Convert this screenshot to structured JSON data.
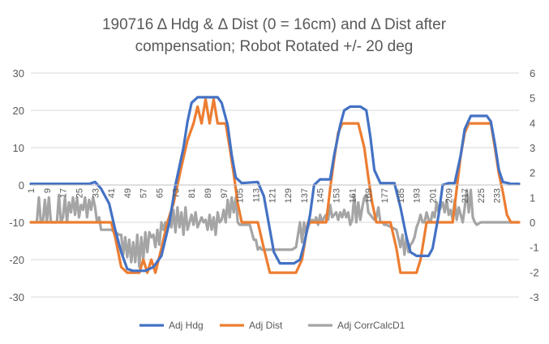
{
  "chart_data": {
    "type": "line",
    "title_line1": "190716 Δ Hdg & Δ Dist (0 = 16cm) and Δ Dist after",
    "title_line2": "compensation; Robot Rotated +/- 20 deg",
    "x_min": 1,
    "x_max": 244,
    "x_ticks": [
      "1",
      "9",
      "17",
      "25",
      "33",
      "41",
      "49",
      "57",
      "65",
      "73",
      "81",
      "89",
      "97",
      "105",
      "113",
      "121",
      "129",
      "137",
      "145",
      "153",
      "161",
      "169",
      "177",
      "185",
      "193",
      "201",
      "209",
      "217",
      "225",
      "233"
    ],
    "y_left": {
      "min": -30,
      "max": 30,
      "ticks": [
        "-30",
        "-20",
        "-10",
        "0",
        "10",
        "20",
        "30"
      ]
    },
    "y_right": {
      "min": -3,
      "max": 6,
      "ticks": [
        "-3",
        "-2",
        "-1",
        "0",
        "1",
        "2",
        "3",
        "4",
        "5",
        "6"
      ]
    },
    "grid": "horizontal",
    "legend_position": "bottom",
    "series": [
      {
        "name": "Adj Hdg",
        "color": "#4472C4",
        "axis": "left",
        "points": [
          [
            1,
            0.3
          ],
          [
            30,
            0.3
          ],
          [
            33,
            0.8
          ],
          [
            36,
            -1
          ],
          [
            40,
            -5
          ],
          [
            43,
            -12
          ],
          [
            46,
            -18
          ],
          [
            49,
            -22.5
          ],
          [
            52,
            -23
          ],
          [
            58,
            -23
          ],
          [
            62,
            -22
          ],
          [
            66,
            -19
          ],
          [
            70,
            -10
          ],
          [
            73,
            0
          ],
          [
            77,
            10
          ],
          [
            79,
            17
          ],
          [
            81,
            22
          ],
          [
            84,
            23.5
          ],
          [
            94,
            23.5
          ],
          [
            96,
            22
          ],
          [
            99,
            16
          ],
          [
            101,
            8
          ],
          [
            103,
            2
          ],
          [
            106,
            0.5
          ],
          [
            114,
            0.8
          ],
          [
            117,
            -3
          ],
          [
            120,
            -12
          ],
          [
            122,
            -18
          ],
          [
            125,
            -21
          ],
          [
            132,
            -21
          ],
          [
            135,
            -20
          ],
          [
            137,
            -16
          ],
          [
            140,
            -8
          ],
          [
            142,
            0
          ],
          [
            145,
            1.5
          ],
          [
            150,
            1.5
          ],
          [
            152,
            8
          ],
          [
            155,
            16
          ],
          [
            157,
            20
          ],
          [
            160,
            21
          ],
          [
            165,
            21
          ],
          [
            168,
            20
          ],
          [
            170,
            13
          ],
          [
            172,
            4
          ],
          [
            175,
            0.5
          ],
          [
            182,
            0.5
          ],
          [
            185,
            -6
          ],
          [
            188,
            -14
          ],
          [
            190,
            -18
          ],
          [
            193,
            -19
          ],
          [
            199,
            -19
          ],
          [
            201,
            -17
          ],
          [
            204,
            -8
          ],
          [
            206,
            0
          ],
          [
            209,
            0.5
          ],
          [
            212,
            0.5
          ],
          [
            215,
            8
          ],
          [
            217,
            15
          ],
          [
            220,
            18.5
          ],
          [
            228,
            18.5
          ],
          [
            230,
            17
          ],
          [
            232,
            11
          ],
          [
            234,
            4
          ],
          [
            236,
            0.8
          ],
          [
            240,
            0.3
          ],
          [
            244,
            0.3
          ]
        ]
      },
      {
        "name": "Adj Dist",
        "color": "#ED7D31",
        "axis": "left",
        "points": [
          [
            1,
            -10
          ],
          [
            38,
            -10
          ],
          [
            41,
            -10
          ],
          [
            43,
            -14
          ],
          [
            46,
            -22
          ],
          [
            49,
            -23.5
          ],
          [
            55,
            -23.5
          ],
          [
            57,
            -20
          ],
          [
            59,
            -23.5
          ],
          [
            61,
            -20
          ],
          [
            63,
            -23.5
          ],
          [
            66,
            -17
          ],
          [
            69,
            -10
          ],
          [
            72,
            -5
          ],
          [
            76,
            5
          ],
          [
            79,
            12
          ],
          [
            82,
            16.5
          ],
          [
            84,
            21
          ],
          [
            86,
            16.5
          ],
          [
            88,
            23
          ],
          [
            90,
            16.5
          ],
          [
            92,
            23
          ],
          [
            94,
            16.5
          ],
          [
            98,
            16.5
          ],
          [
            100,
            10
          ],
          [
            102,
            3
          ],
          [
            104,
            -5
          ],
          [
            106,
            -10
          ],
          [
            114,
            -10
          ],
          [
            117,
            -17
          ],
          [
            120,
            -23.5
          ],
          [
            128,
            -23.5
          ],
          [
            133,
            -23.5
          ],
          [
            136,
            -20
          ],
          [
            139,
            -10
          ],
          [
            148,
            -10
          ],
          [
            150,
            -1
          ],
          [
            152,
            7
          ],
          [
            154,
            14
          ],
          [
            156,
            16.5
          ],
          [
            164,
            16.5
          ],
          [
            167,
            10
          ],
          [
            169,
            2
          ],
          [
            171,
            -5
          ],
          [
            173,
            -10
          ],
          [
            180,
            -10
          ],
          [
            183,
            -17
          ],
          [
            185,
            -23.5
          ],
          [
            193,
            -23.5
          ],
          [
            195,
            -20
          ],
          [
            198,
            -10
          ],
          [
            211,
            -10
          ],
          [
            213,
            -1
          ],
          [
            215,
            8
          ],
          [
            217,
            14
          ],
          [
            219,
            16.5
          ],
          [
            230,
            16.5
          ],
          [
            232,
            10
          ],
          [
            234,
            3
          ],
          [
            236,
            -2
          ],
          [
            238,
            -8
          ],
          [
            240,
            -10
          ],
          [
            244,
            -10
          ]
        ]
      },
      {
        "name": "Adj CorrCalcD1",
        "color": "#A5A5A5",
        "axis": "right",
        "points": [
          [
            1,
            0
          ],
          [
            4,
            0
          ],
          [
            5,
            1
          ],
          [
            6,
            0
          ],
          [
            7,
            0
          ],
          [
            8,
            0.9
          ],
          [
            9,
            0
          ],
          [
            10,
            1
          ],
          [
            11,
            0
          ],
          [
            14,
            0
          ],
          [
            15,
            1.1
          ],
          [
            16,
            0
          ],
          [
            17,
            0.2
          ],
          [
            18,
            1
          ],
          [
            19,
            0
          ],
          [
            20,
            0.8
          ],
          [
            21,
            0.4
          ],
          [
            22,
            1
          ],
          [
            23,
            0.3
          ],
          [
            24,
            1
          ],
          [
            25,
            0.2
          ],
          [
            26,
            0.7
          ],
          [
            27,
            0.5
          ],
          [
            28,
            1
          ],
          [
            29,
            0.2
          ],
          [
            30,
            0.9
          ],
          [
            31,
            0.5
          ],
          [
            32,
            1
          ],
          [
            33,
            0.6
          ],
          [
            34,
            0
          ],
          [
            35,
            0.2
          ],
          [
            36,
            -0.3
          ],
          [
            41,
            -0.3
          ],
          [
            45,
            -0.5
          ],
          [
            46,
            -0.5
          ],
          [
            47,
            -1.3
          ],
          [
            48,
            -0.6
          ],
          [
            49,
            -1.4
          ],
          [
            50,
            -0.7
          ],
          [
            51,
            -1.6
          ],
          [
            52,
            -0.8
          ],
          [
            53,
            -1.6
          ],
          [
            54,
            -0.5
          ],
          [
            55,
            -1.8
          ],
          [
            56,
            -0.6
          ],
          [
            57,
            -1.5
          ],
          [
            58,
            -0.4
          ],
          [
            59,
            -1.2
          ],
          [
            60,
            -0.4
          ],
          [
            61,
            -0.6
          ],
          [
            62,
            -0.5
          ],
          [
            63,
            -1
          ],
          [
            64,
            -0.3
          ],
          [
            65,
            -0.9
          ],
          [
            66,
            0
          ],
          [
            67,
            -0.3
          ],
          [
            68,
            0
          ],
          [
            69,
            -0.1
          ],
          [
            70,
            0
          ],
          [
            71,
            -0.2
          ],
          [
            72,
            0.5
          ],
          [
            73,
            -0.4
          ],
          [
            74,
            0.6
          ],
          [
            75,
            -0.2
          ],
          [
            76,
            0.4
          ],
          [
            77,
            -0.5
          ],
          [
            78,
            0.6
          ],
          [
            79,
            -0.3
          ],
          [
            80,
            0
          ],
          [
            81,
            0.3
          ],
          [
            82,
            -0.1
          ],
          [
            83,
            0.4
          ],
          [
            84,
            -0.2
          ],
          [
            85,
            0
          ],
          [
            86,
            0.2
          ],
          [
            87,
            0
          ],
          [
            88,
            0.1
          ],
          [
            89,
            -0.3
          ],
          [
            90,
            0.3
          ],
          [
            91,
            -0.3
          ],
          [
            92,
            0.2
          ],
          [
            93,
            -0.5
          ],
          [
            94,
            0.4
          ],
          [
            95,
            0
          ],
          [
            96,
            0.1
          ],
          [
            97,
            0.5
          ],
          [
            98,
            0
          ],
          [
            99,
            0.9
          ],
          [
            100,
            0.2
          ],
          [
            101,
            1
          ],
          [
            102,
            0.4
          ],
          [
            103,
            1
          ],
          [
            104,
            0
          ],
          [
            105,
            -0.1
          ],
          [
            106,
            -0.1
          ],
          [
            110,
            -0.1
          ],
          [
            112,
            -0.7
          ],
          [
            113,
            -0.7
          ],
          [
            114,
            -1.1
          ],
          [
            115,
            -1
          ],
          [
            116,
            -1.1
          ],
          [
            125,
            -1.1
          ],
          [
            130,
            -1.1
          ],
          [
            131,
            -1.1
          ],
          [
            133,
            -1
          ],
          [
            135,
            0
          ],
          [
            136,
            -0.8
          ],
          [
            137,
            0
          ],
          [
            138,
            -0.5
          ],
          [
            139,
            -0.2
          ],
          [
            140,
            0
          ],
          [
            141,
            0.1
          ],
          [
            142,
            0
          ],
          [
            143,
            0.2
          ],
          [
            144,
            -0.1
          ],
          [
            145,
            0.3
          ],
          [
            146,
            0
          ],
          [
            147,
            0.2
          ],
          [
            148,
            0.3
          ],
          [
            149,
            0.1
          ],
          [
            150,
            0.7
          ],
          [
            151,
            0.2
          ],
          [
            152,
            0.3
          ],
          [
            153,
            0.4
          ],
          [
            154,
            0.1
          ],
          [
            155,
            0.4
          ],
          [
            156,
            0.2
          ],
          [
            157,
            0.5
          ],
          [
            158,
            0.2
          ],
          [
            159,
            0.4
          ],
          [
            160,
            -0.1
          ],
          [
            161,
            0.1
          ],
          [
            162,
            1.1
          ],
          [
            163,
            0
          ],
          [
            164,
            0.8
          ],
          [
            165,
            0.1
          ],
          [
            166,
            0.6
          ],
          [
            167,
            1
          ],
          [
            168,
            1.1
          ],
          [
            169,
            0.4
          ],
          [
            170,
            0.3
          ],
          [
            171,
            0.2
          ],
          [
            172,
            0.1
          ],
          [
            173,
            0.2
          ],
          [
            174,
            0.6
          ],
          [
            175,
            0
          ],
          [
            176,
            0
          ],
          [
            177,
            -0.1
          ],
          [
            178,
            -0.1
          ],
          [
            183,
            -0.3
          ],
          [
            185,
            -1
          ],
          [
            186,
            -0.5
          ],
          [
            187,
            -1.3
          ],
          [
            188,
            -0.6
          ],
          [
            189,
            -1.2
          ],
          [
            190,
            -0.9
          ],
          [
            191,
            -0.8
          ],
          [
            192,
            -0.6
          ],
          [
            193,
            -0.2
          ],
          [
            194,
            0
          ],
          [
            195,
            0.3
          ],
          [
            196,
            0
          ],
          [
            197,
            0
          ],
          [
            198,
            0.4
          ],
          [
            199,
            0.1
          ],
          [
            200,
            0
          ],
          [
            201,
            0.4
          ],
          [
            202,
            0.2
          ],
          [
            203,
            0.8
          ],
          [
            204,
            0.4
          ],
          [
            205,
            0.6
          ],
          [
            206,
            0.8
          ],
          [
            207,
            0.4
          ],
          [
            208,
            0.9
          ],
          [
            209,
            0.3
          ],
          [
            210,
            0.5
          ],
          [
            211,
            0.1
          ],
          [
            212,
            0.9
          ],
          [
            213,
            0.1
          ],
          [
            214,
            0.6
          ],
          [
            215,
            0.3
          ],
          [
            216,
            0
          ],
          [
            217,
            0.6
          ],
          [
            218,
            1.3
          ],
          [
            219,
            0.4
          ],
          [
            220,
            1.3
          ],
          [
            221,
            0.2
          ],
          [
            222,
            0
          ],
          [
            223,
            -0.1
          ],
          [
            225,
            0
          ],
          [
            244,
            0
          ]
        ]
      }
    ]
  }
}
